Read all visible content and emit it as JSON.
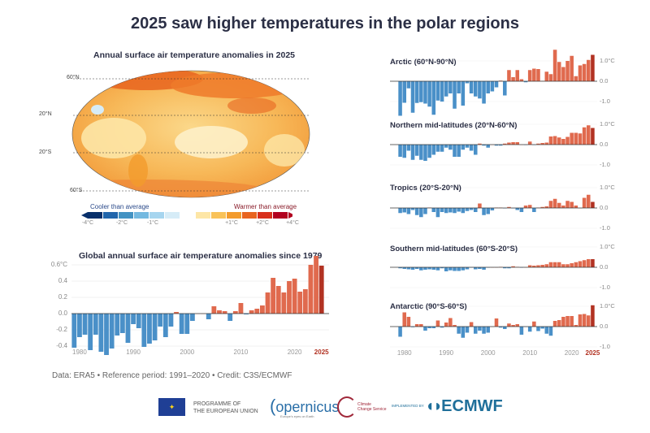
{
  "title": "2025 saw higher temperatures in the polar regions",
  "map": {
    "title": "Annual surface air temperature anomalies in 2025",
    "lat_labels": [
      "60°N",
      "20°N",
      "20°S",
      "60°S"
    ],
    "legend": {
      "cooler_label": "Cooler than average",
      "warmer_label": "Warmer than average",
      "tick_labels": [
        "-4°C",
        "-2°C",
        "-1°C",
        "+1°C",
        "+2°C",
        "+4°C"
      ],
      "colors": [
        "#08306b",
        "#2166ac",
        "#4393c3",
        "#74b9e0",
        "#a6d5ef",
        "#d6ecf7",
        "#ffffff",
        "#fde6a6",
        "#f9c258",
        "#f39b2c",
        "#e8641f",
        "#d8301c",
        "#b2001f"
      ]
    }
  },
  "colors": {
    "negative": "#4a90c8",
    "positive": "#e06a4e",
    "highlight": "#b23222",
    "title": "#2b2f45"
  },
  "chart_data": [
    {
      "type": "bar",
      "title": "Global annual surface air temperature anomalies since 1979",
      "x_start": 1979,
      "x_end": 2025,
      "xtick_labels": [
        "1980",
        "1990",
        "2000",
        "2010",
        "2020",
        "2025"
      ],
      "ytick_labels": [
        "0.6°C",
        "0.4",
        "0.2",
        "0.0",
        "-0.2",
        "-0.4"
      ],
      "ylim": [
        -0.5,
        0.7
      ],
      "grid": true,
      "values": [
        -0.42,
        -0.29,
        -0.26,
        -0.45,
        -0.26,
        -0.47,
        -0.51,
        -0.43,
        -0.27,
        -0.24,
        -0.36,
        -0.13,
        -0.18,
        -0.41,
        -0.37,
        -0.33,
        -0.16,
        -0.29,
        -0.16,
        0.02,
        -0.25,
        -0.25,
        -0.09,
        0.0,
        0.0,
        -0.07,
        0.09,
        0.04,
        0.03,
        -0.09,
        0.03,
        0.13,
        -0.01,
        0.04,
        0.06,
        0.1,
        0.26,
        0.44,
        0.34,
        0.26,
        0.4,
        0.43,
        0.27,
        0.3,
        0.6,
        0.71,
        0.59
      ]
    },
    {
      "type": "bar",
      "title": "Arctic (60°N-90°N)",
      "ytick_labels": [
        "1.0°C",
        "0.0",
        "-1.0"
      ],
      "values": [
        -1.7,
        -1.06,
        -0.35,
        -1.55,
        -1.07,
        -1.03,
        -1.1,
        -1.25,
        -1.65,
        -0.95,
        -1.0,
        -0.75,
        -0.6,
        -1.35,
        -0.6,
        -1.2,
        -0.1,
        -0.6,
        -0.75,
        -0.85,
        -1.1,
        -0.6,
        -0.5,
        -0.3,
        0.03,
        -0.7,
        0.55,
        0.2,
        0.55,
        0.1,
        -0.05,
        0.55,
        0.62,
        0.6,
        0.02,
        0.47,
        0.35,
        1.55,
        0.95,
        0.7,
        1.0,
        1.25,
        0.25,
        0.78,
        0.85,
        1.05,
        1.3
      ]
    },
    {
      "type": "bar",
      "title": "Northern mid-latitudes (20°N-60°N)",
      "ytick_labels": [
        "1.0°C",
        "0.0",
        "-1.0"
      ],
      "values": [
        -0.6,
        -0.65,
        -0.3,
        -0.75,
        -0.55,
        -0.75,
        -0.8,
        -0.65,
        -0.5,
        -0.35,
        -0.35,
        -0.15,
        -0.25,
        -0.6,
        -0.6,
        -0.25,
        -0.15,
        -0.3,
        -0.5,
        0.05,
        -0.05,
        -0.15,
        0.0,
        -0.05,
        -0.05,
        0.05,
        0.1,
        0.12,
        0.12,
        0.0,
        -0.02,
        0.15,
        -0.02,
        0.05,
        0.08,
        0.1,
        0.4,
        0.42,
        0.35,
        0.28,
        0.38,
        0.58,
        0.58,
        0.55,
        0.85,
        0.95,
        0.82
      ]
    },
    {
      "type": "bar",
      "title": "Tropics (20°S-20°N)",
      "ytick_labels": [
        "1.0°C",
        "0.0",
        "-1.0"
      ],
      "values": [
        -0.25,
        -0.22,
        -0.3,
        -0.1,
        -0.35,
        -0.45,
        -0.3,
        0.02,
        -0.2,
        -0.45,
        -0.2,
        -0.25,
        -0.22,
        -0.25,
        -0.18,
        -0.25,
        -0.15,
        -0.1,
        -0.2,
        0.22,
        -0.35,
        -0.3,
        -0.12,
        0.02,
        0.02,
        -0.02,
        0.05,
        -0.02,
        -0.1,
        -0.2,
        0.12,
        0.15,
        -0.2,
        0.02,
        0.05,
        0.08,
        0.35,
        0.45,
        0.25,
        0.12,
        0.35,
        0.3,
        0.12,
        0.0,
        0.5,
        0.65,
        0.3
      ]
    },
    {
      "type": "bar",
      "title": "Southern mid-latitudes (60°S-20°S)",
      "ytick_labels": [
        "1.0°C",
        "0.0",
        "-1.0"
      ],
      "values": [
        -0.05,
        -0.08,
        -0.1,
        -0.12,
        -0.08,
        -0.15,
        -0.12,
        -0.1,
        -0.12,
        -0.15,
        -0.05,
        -0.2,
        -0.15,
        -0.18,
        -0.18,
        -0.15,
        -0.1,
        -0.02,
        -0.1,
        -0.08,
        -0.12,
        -0.02,
        0.0,
        0.0,
        0.02,
        -0.05,
        -0.05,
        0.05,
        0.02,
        -0.02,
        0.0,
        0.1,
        0.08,
        0.1,
        0.12,
        0.15,
        0.25,
        0.25,
        0.25,
        0.15,
        0.15,
        0.2,
        0.25,
        0.3,
        0.35,
        0.4,
        0.4
      ]
    },
    {
      "type": "bar",
      "title": "Antarctic (90°S-60°S)",
      "ytick_labels": [
        "1.0°C",
        "0.0",
        "-1.0"
      ],
      "xtick_labels": [
        "1980",
        "1990",
        "2000",
        "2010",
        "2020",
        "2025"
      ],
      "values": [
        -0.5,
        0.7,
        0.48,
        -0.03,
        0.12,
        0.12,
        -0.2,
        -0.08,
        -0.08,
        0.3,
        -0.05,
        0.2,
        0.42,
        0.08,
        -0.35,
        -0.55,
        -0.3,
        0.22,
        -0.35,
        -0.2,
        -0.35,
        -0.3,
        0.0,
        0.4,
        -0.05,
        -0.12,
        0.15,
        0.08,
        0.12,
        -0.4,
        -0.02,
        -0.25,
        0.25,
        -0.22,
        -0.1,
        -0.35,
        -0.45,
        0.28,
        0.32,
        0.48,
        0.52,
        0.52,
        0.08,
        0.6,
        0.62,
        0.55,
        1.05
      ]
    }
  ],
  "footer": {
    "credit": "Data: ERA5 • Reference period: 1991–2020 • Credit: C3S/ECMWF",
    "eu_text": [
      "PROGRAMME OF",
      "THE EUROPEAN UNION"
    ],
    "copernicus": "opernicus",
    "copernicus_tagline": "Europe's eyes on Earth",
    "c3s": [
      "Climate",
      "Change Service"
    ],
    "implemented_by": "IMPLEMENTED BY",
    "ecmwf": "ECMWF"
  }
}
